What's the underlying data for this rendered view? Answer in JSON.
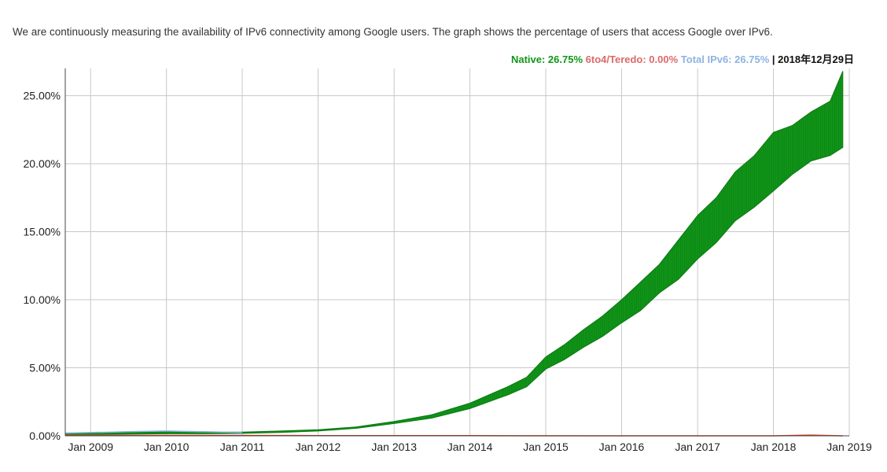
{
  "intro_text": "We are continuously measuring the availability of IPv6 connectivity among Google users. The graph shows the percentage of users that access Google over IPv6.",
  "legend": {
    "native": "Native: 26.75%",
    "teredo": "6to4/Teredo: 0.00%",
    "total": "Total IPv6: 26.75%",
    "separator": " | ",
    "date": "2018年12月29日"
  },
  "colors": {
    "native": "#109618",
    "teredo": "#dc3912",
    "total": "#8db3e2",
    "grid": "#c8c8c8"
  },
  "chart_data": {
    "type": "line",
    "title": "",
    "xlabel": "",
    "ylabel": "",
    "ylim": [
      0,
      27.0
    ],
    "xlim": [
      "2008-09-01",
      "2019-01-01"
    ],
    "x_ticks": [
      "Jan 2009",
      "Jan 2010",
      "Jan 2011",
      "Jan 2012",
      "Jan 2013",
      "Jan 2014",
      "Jan 2015",
      "Jan 2016",
      "Jan 2017",
      "Jan 2018",
      "Jan 2019"
    ],
    "y_ticks": [
      "0.00%",
      "5.00%",
      "10.00%",
      "15.00%",
      "20.00%",
      "25.00%"
    ],
    "grid": true,
    "series": [
      {
        "name": "Native",
        "color": "#109618",
        "x": [
          "2008-09",
          "2009-01",
          "2009-07",
          "2010-01",
          "2010-07",
          "2011-01",
          "2011-07",
          "2012-01",
          "2012-07",
          "2013-01",
          "2013-07",
          "2014-01",
          "2014-04",
          "2014-07",
          "2014-10",
          "2015-01",
          "2015-04",
          "2015-07",
          "2015-10",
          "2016-01",
          "2016-04",
          "2016-07",
          "2016-10",
          "2017-01",
          "2017-04",
          "2017-07",
          "2017-10",
          "2018-01",
          "2018-04",
          "2018-07",
          "2018-10",
          "2018-12"
        ],
        "low": [
          0.1,
          0.1,
          0.12,
          0.15,
          0.15,
          0.18,
          0.25,
          0.35,
          0.55,
          0.9,
          1.3,
          2.0,
          2.5,
          3.0,
          3.6,
          4.9,
          5.6,
          6.5,
          7.3,
          8.3,
          9.2,
          10.5,
          11.5,
          13.0,
          14.2,
          15.8,
          16.8,
          18.0,
          19.2,
          20.2,
          20.6,
          21.2
        ],
        "high": [
          0.2,
          0.22,
          0.25,
          0.3,
          0.28,
          0.28,
          0.35,
          0.45,
          0.65,
          1.05,
          1.55,
          2.4,
          3.0,
          3.6,
          4.3,
          5.8,
          6.7,
          7.8,
          8.8,
          10.0,
          11.3,
          12.6,
          14.4,
          16.2,
          17.5,
          19.4,
          20.6,
          22.3,
          22.8,
          23.8,
          24.6,
          26.8
        ]
      },
      {
        "name": "6to4/Teredo",
        "color": "#dc3912",
        "x": [
          "2008-09",
          "2010-01",
          "2012-01",
          "2014-01",
          "2016-01",
          "2018-01",
          "2018-07",
          "2018-12"
        ],
        "values": [
          0.03,
          0.03,
          0.02,
          0.01,
          0.0,
          0.0,
          0.05,
          0.0
        ]
      },
      {
        "name": "Total IPv6",
        "color": "#8db3e2",
        "x": [
          "2008-09",
          "2009-07",
          "2010-01",
          "2010-07",
          "2011-01"
        ],
        "values": [
          0.2,
          0.3,
          0.35,
          0.3,
          0.25
        ]
      }
    ]
  }
}
